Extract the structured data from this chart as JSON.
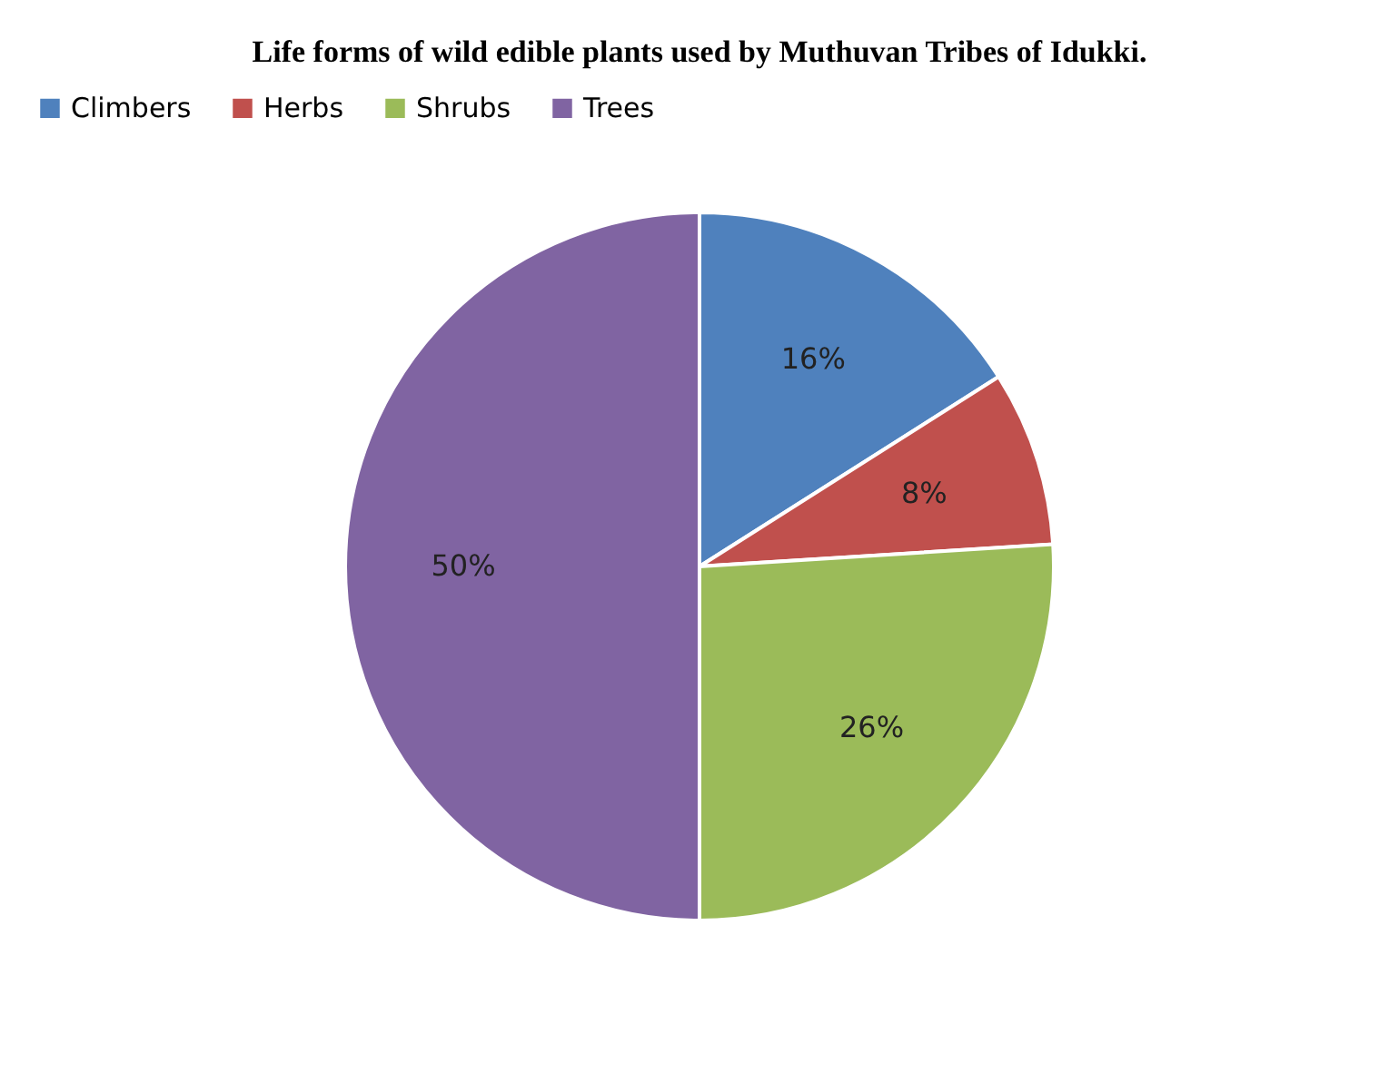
{
  "chart_data": {
    "type": "pie",
    "title": "Life forms of wild edible plants used by Muthuvan Tribes of Idukki.",
    "categories": [
      "Climbers",
      "Herbs",
      "Shrubs",
      "Trees"
    ],
    "values": [
      16,
      8,
      26,
      50
    ],
    "colors": [
      "#4f81bd",
      "#c0504d",
      "#9bbb59",
      "#8064a2"
    ],
    "value_labels": [
      "16%",
      "8%",
      "26%",
      "50%"
    ],
    "legend": "top"
  }
}
